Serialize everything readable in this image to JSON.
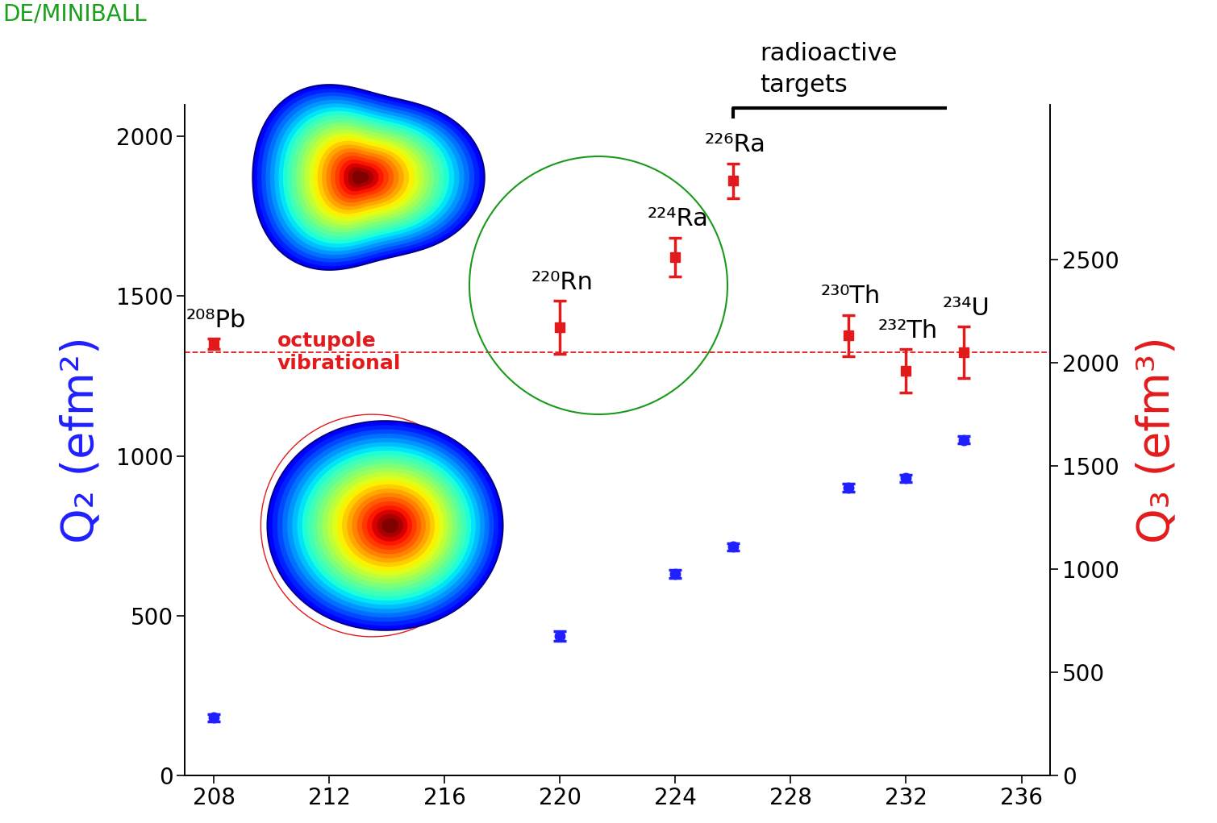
{
  "chart_data": {
    "type": "scatter",
    "header": "DE/MINIBALL",
    "x": [
      208,
      220,
      224,
      226,
      230,
      232,
      234
    ],
    "point_labels": [
      "²⁰⁸Pb",
      "²²⁰Rn",
      "²²⁴Ra",
      "²²⁶Ra",
      "²³⁰Th",
      "²³²Th",
      "²³⁴U"
    ],
    "xlim": [
      207,
      237
    ],
    "xticks": [
      208,
      212,
      216,
      220,
      224,
      228,
      232,
      236
    ],
    "y_label": "Q₂ (efm²)",
    "ylim": [
      0,
      2100
    ],
    "yticks": [
      0,
      500,
      1000,
      1500,
      2000
    ],
    "y2_label": "Q₃ (efm³)",
    "y2lim": [
      0,
      3250
    ],
    "y2ticks": [
      0,
      500,
      1000,
      1500,
      2000,
      2500
    ],
    "series": [
      {
        "color": "#1f1fff",
        "marker": "circle",
        "line_style": "none",
        "values": [
          180,
          435,
          630,
          715,
          900,
          930,
          1050
        ],
        "errors": [
          12,
          15,
          12,
          12,
          12,
          12,
          12
        ]
      },
      {
        "color": "#e31a1c",
        "marker": "square",
        "line_style": "none",
        "axis": "y2",
        "values": [
          2090,
          2170,
          2510,
          2880,
          2130,
          1960,
          2050
        ],
        "errors": [
          25,
          130,
          95,
          85,
          100,
          105,
          125
        ]
      }
    ],
    "reference_line": {
      "value": 2050,
      "axis": "y2",
      "label": "octupole\nvibrational",
      "label_x": 210.2,
      "color": "#e31a1c",
      "line_style": "dashed"
    },
    "bracket": {
      "text": "radioactive\ntargets",
      "x_range": [
        226,
        233.4
      ],
      "value": 3235,
      "axis": "y2"
    }
  }
}
